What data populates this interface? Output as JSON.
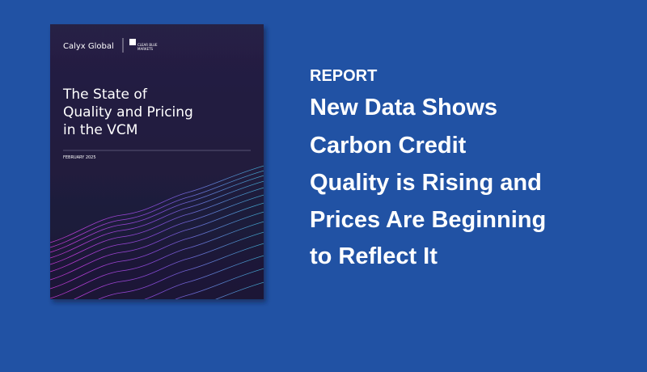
{
  "cover": {
    "logo_left": "Calyx Global",
    "logo_right": [
      "CLEAR BLUE",
      "MARKETS"
    ],
    "title": [
      "The State of",
      "Quality and Pricing",
      "in the VCM"
    ],
    "date": "FEBRUARY 2025"
  },
  "label": "REPORT",
  "headline": [
    "New Data Shows",
    "Carbon Credit",
    "Quality is Rising and",
    "Prices Are Beginning",
    "to Reflect It"
  ]
}
